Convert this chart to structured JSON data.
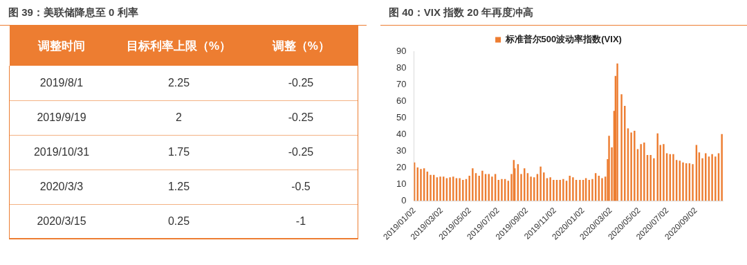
{
  "chart_data": [
    {
      "type": "other",
      "title": "图 39：美联储降息至 0 利率",
      "xlabel": "调整时间",
      "categories": [
        "2019/8/1",
        "2019/9/19",
        "2019/10/31",
        "2020/3/3",
        "2020/3/15"
      ],
      "data_labels": true,
      "series": [
        {
          "name": "目标利率上限（%）",
          "values": [
            2.25,
            2,
            1.75,
            1.25,
            0.25
          ],
          "value_labels": [
            "2.25",
            "2",
            "1.75",
            "1.25",
            "0.25"
          ]
        },
        {
          "name": "调整（%）",
          "values": [
            -0.25,
            -0.25,
            -0.25,
            -0.5,
            -1
          ],
          "value_labels": [
            "-0.25",
            "-0.25",
            "-0.25",
            "-0.5",
            "-1"
          ]
        }
      ]
    },
    {
      "type": "bar",
      "title": "图 40：VIX 指数 20 年再度冲高",
      "legend": "top",
      "grid": false,
      "x": [
        "2019-01-02",
        "2019-01-09",
        "2019-01-16",
        "2019-01-23",
        "2019-01-30",
        "2019-02-06",
        "2019-02-13",
        "2019-02-20",
        "2019-02-27",
        "2019-03-06",
        "2019-03-13",
        "2019-03-20",
        "2019-03-27",
        "2019-04-03",
        "2019-04-10",
        "2019-04-17",
        "2019-04-24",
        "2019-05-01",
        "2019-05-08",
        "2019-05-15",
        "2019-05-22",
        "2019-05-29",
        "2019-06-05",
        "2019-06-12",
        "2019-06-19",
        "2019-06-26",
        "2019-07-03",
        "2019-07-10",
        "2019-07-17",
        "2019-07-24",
        "2019-07-31",
        "2019-08-05",
        "2019-08-07",
        "2019-08-14",
        "2019-08-21",
        "2019-08-28",
        "2019-09-04",
        "2019-09-11",
        "2019-09-18",
        "2019-09-25",
        "2019-10-02",
        "2019-10-09",
        "2019-10-16",
        "2019-10-23",
        "2019-10-30",
        "2019-11-06",
        "2019-11-13",
        "2019-11-20",
        "2019-11-27",
        "2019-12-04",
        "2019-12-11",
        "2019-12-18",
        "2019-12-26",
        "2020-01-02",
        "2020-01-08",
        "2020-01-15",
        "2020-01-22",
        "2020-01-29",
        "2020-02-05",
        "2020-02-12",
        "2020-02-19",
        "2020-02-24",
        "2020-02-27",
        "2020-03-04",
        "2020-03-09",
        "2020-03-12",
        "2020-03-16",
        "2020-03-25",
        "2020-04-01",
        "2020-04-08",
        "2020-04-15",
        "2020-04-22",
        "2020-04-29",
        "2020-05-06",
        "2020-05-13",
        "2020-05-20",
        "2020-05-27",
        "2020-06-03",
        "2020-06-11",
        "2020-06-17",
        "2020-06-24",
        "2020-07-01",
        "2020-07-08",
        "2020-07-15",
        "2020-07-22",
        "2020-07-29",
        "2020-08-05",
        "2020-08-12",
        "2020-08-19",
        "2020-08-26",
        "2020-09-03",
        "2020-09-09",
        "2020-09-16",
        "2020-09-23",
        "2020-09-30",
        "2020-10-07",
        "2020-10-14",
        "2020-10-21",
        "2020-10-28"
      ],
      "series": [
        {
          "name": "标准普尔500波动率指数(VIX)",
          "color": "#ed7d31",
          "values": [
            23,
            20,
            19,
            19.5,
            17.5,
            15.5,
            15.5,
            14,
            14.5,
            14.5,
            13.5,
            14,
            14.5,
            13.5,
            13.5,
            12.5,
            13,
            15,
            19.5,
            16.5,
            15,
            18,
            16,
            16,
            14.5,
            16,
            12.5,
            13,
            13,
            12,
            16,
            24.5,
            19.5,
            22,
            16,
            19.5,
            16.5,
            14.5,
            14,
            16,
            20.5,
            17,
            13.5,
            14,
            12.5,
            12.5,
            12.5,
            13,
            12,
            15,
            14,
            12.5,
            12.5,
            12.5,
            13.5,
            12.5,
            13,
            16.5,
            15,
            13.5,
            14.5,
            25,
            39,
            32,
            54,
            75,
            82.5,
            64,
            57,
            43.5,
            41,
            42,
            31,
            34,
            35,
            27.5,
            27.5,
            25.5,
            40.5,
            33.5,
            34,
            28.5,
            28,
            28,
            24.5,
            24,
            23,
            22.5,
            22.5,
            22,
            33.5,
            29,
            25.5,
            28.5,
            26.5,
            28,
            26.5,
            28.5,
            40
          ]
        }
      ],
      "xlim": [
        "2019-01-01",
        "2020-10-30"
      ],
      "xticks": [
        {
          "value": "2019-01-02",
          "label": "2019/01/02"
        },
        {
          "value": "2019-03-02",
          "label": "2019/03/02"
        },
        {
          "value": "2019-05-02",
          "label": "2019/05/02"
        },
        {
          "value": "2019-07-02",
          "label": "2019/07/02"
        },
        {
          "value": "2019-09-02",
          "label": "2019/09/02"
        },
        {
          "value": "2019-11-02",
          "label": "2019/11/02"
        },
        {
          "value": "2020-01-02",
          "label": "2020/01/02"
        },
        {
          "value": "2020-03-02",
          "label": "2020/03/02"
        },
        {
          "value": "2020-05-02",
          "label": "2020/05/02"
        },
        {
          "value": "2020-07-02",
          "label": "2020/07/02"
        },
        {
          "value": "2020-09-02",
          "label": "2020/09/02"
        }
      ],
      "ylim": [
        0,
        90
      ],
      "yticks": [
        0,
        10,
        20,
        30,
        40,
        50,
        60,
        70,
        80,
        90
      ]
    }
  ]
}
